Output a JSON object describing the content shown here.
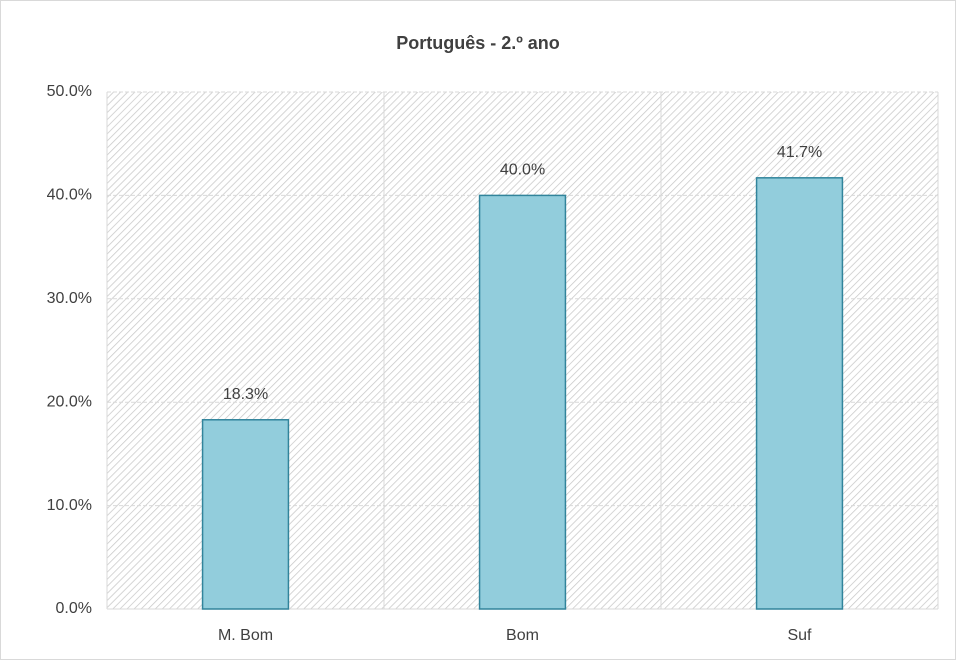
{
  "chart_data": {
    "type": "bar",
    "title": "Português - 2.º ano",
    "categories": [
      "M. Bom",
      "Bom",
      "Suf"
    ],
    "values": [
      18.3,
      40.0,
      41.7
    ],
    "value_labels": [
      "18.3%",
      "40.0%",
      "41.7%"
    ],
    "color": "#92cddc",
    "edge_color": "#31849b",
    "ylim": [
      0,
      50
    ],
    "yticks": [
      {
        "value": 0,
        "label": "0.0%"
      },
      {
        "value": 10,
        "label": "10.0%"
      },
      {
        "value": 20,
        "label": "20.0%"
      },
      {
        "value": 30,
        "label": "30.0%"
      },
      {
        "value": 40,
        "label": "40.0%"
      },
      {
        "value": 50,
        "label": "50.0%"
      }
    ],
    "grid": true
  }
}
